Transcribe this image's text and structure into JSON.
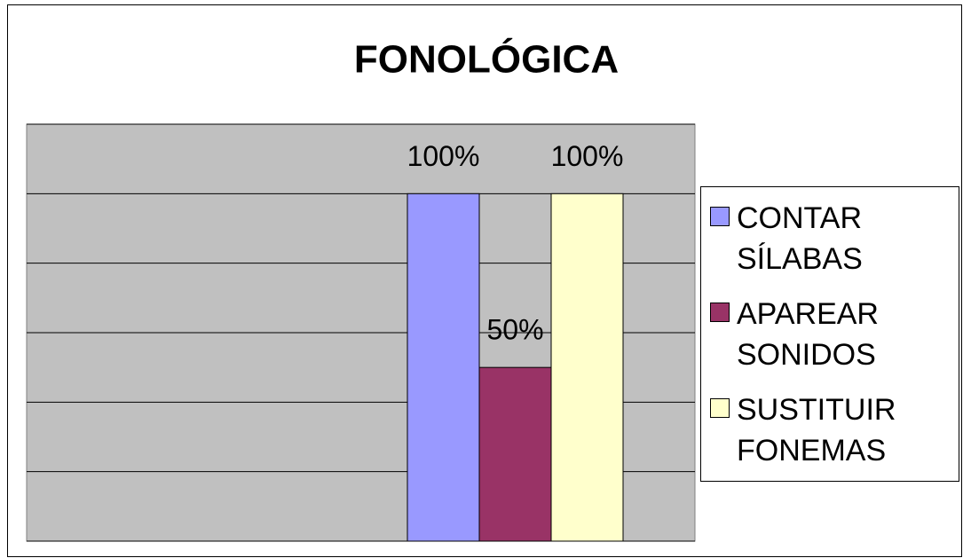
{
  "chart_data": {
    "type": "bar",
    "title": "FONOLÓGICA",
    "categories": [
      null
    ],
    "series": [
      {
        "name": "CONTAR SÍLABAS",
        "color": "#9999ff",
        "values": [
          100
        ],
        "value_labels": [
          "100%"
        ]
      },
      {
        "name": "APAREAR SONIDOS",
        "color": "#993366",
        "values": [
          50
        ],
        "value_labels": [
          "50%"
        ]
      },
      {
        "name": "SUSTITUIR FONEMAS",
        "color": "#ffffcc",
        "values": [
          100
        ],
        "value_labels": [
          "100%"
        ]
      }
    ],
    "ylim": [
      0,
      120
    ],
    "yticks": [
      0,
      20,
      40,
      60,
      80,
      100,
      120
    ],
    "grid": true,
    "legend": "right"
  }
}
